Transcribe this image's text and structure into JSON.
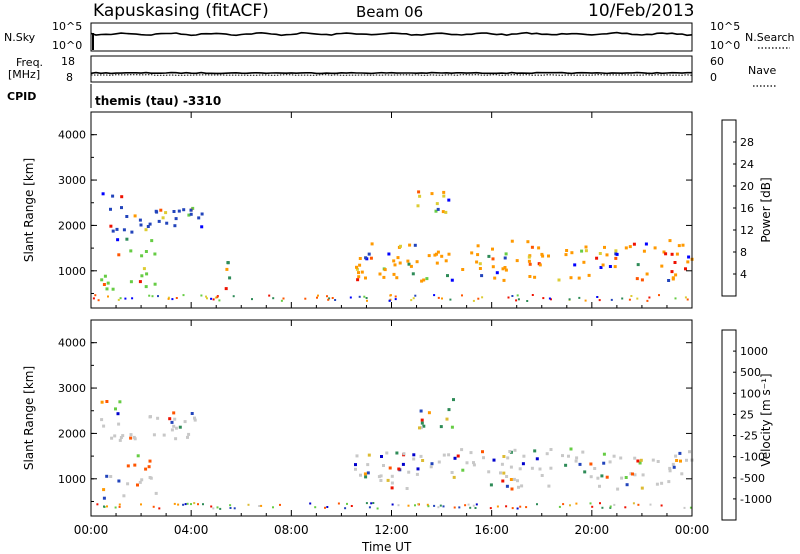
{
  "header": {
    "station": "Kapuskasing (fitACF)",
    "beam": "Beam 06",
    "date": "10/Feb/2013"
  },
  "strips": {
    "nsky_label": "N.Sky",
    "nsky_ticks": [
      "10^5",
      "10^0"
    ],
    "nsearch_label": "N.Search",
    "nsearch_ticks": [
      "10^5",
      "10^0"
    ],
    "freq_label_1": "Freq.",
    "freq_label_2": "[MHz]",
    "freq_ticks": [
      "18",
      "8"
    ],
    "nave_label": "Nave",
    "nave_ticks": [
      "60",
      "0"
    ],
    "cpid_label": "CPID",
    "cpid_text": "themis (tau) -3310"
  },
  "chart_data": [
    {
      "type": "heatmap",
      "name": "power-panel",
      "ylabel": "Slant Range [km]",
      "xlabel": "Time UT",
      "y_ticks": [
        "4000",
        "3000",
        "2000",
        "1000"
      ],
      "x_ticks": [
        "00:00",
        "04:00",
        "08:00",
        "12:00",
        "16:00",
        "20:00",
        "00:00"
      ],
      "xlim_hours": [
        0,
        24
      ],
      "ylim_km": [
        180,
        4500
      ],
      "colorbar": {
        "label": "Power [dB]",
        "ticks": [
          "28",
          "24",
          "20",
          "16",
          "12",
          "8",
          "4"
        ],
        "colors": [
          "#0000ff",
          "#2244bb",
          "#2e8b57",
          "#66cc44",
          "#ddcc33",
          "#ff9900",
          "#ff5500",
          "#ee1100"
        ]
      },
      "echo_regions": [
        {
          "t0": 0.3,
          "t1": 1.3,
          "r0": 2350,
          "r1": 2750,
          "dominant": "#2244bb"
        },
        {
          "t0": 0.3,
          "t1": 2.6,
          "r0": 600,
          "r1": 1100,
          "dominant": "#66cc44"
        },
        {
          "t0": 1.0,
          "t1": 2.5,
          "r0": 1300,
          "r1": 1800,
          "dominant": "#66cc44"
        },
        {
          "t0": 0.3,
          "t1": 4.5,
          "r0": 1800,
          "r1": 2500,
          "dominant": "#2244bb"
        },
        {
          "t0": 5.0,
          "t1": 5.5,
          "r0": 600,
          "r1": 1500,
          "dominant": "#2e8b57"
        },
        {
          "t0": 10.5,
          "t1": 24.0,
          "r0": 800,
          "r1": 1700,
          "dominant": "#ff9900"
        },
        {
          "t0": 13.0,
          "t1": 14.5,
          "r0": 2100,
          "r1": 2800,
          "dominant": "#ddcc33"
        }
      ]
    },
    {
      "type": "heatmap",
      "name": "velocity-panel",
      "ylabel": "Slant Range [km]",
      "xlabel": "Time UT",
      "y_ticks": [
        "4000",
        "3000",
        "2000",
        "1000"
      ],
      "x_ticks": [
        "00:00",
        "04:00",
        "08:00",
        "12:00",
        "16:00",
        "20:00",
        "00:00"
      ],
      "xlim_hours": [
        0,
        24
      ],
      "ylim_km": [
        180,
        4500
      ],
      "colorbar": {
        "label": "Velocity [m s⁻¹]",
        "ticks": [
          "1000",
          "500",
          "100",
          "25",
          "-25",
          "-100",
          "-500",
          "-1000"
        ],
        "colors": [
          "#ee1100",
          "#ff5500",
          "#ff9900",
          "#ddbb33",
          "#c8c8c8",
          "#66cc44",
          "#2e8b57",
          "#2244bb",
          "#0000cc"
        ]
      },
      "echo_regions": [
        {
          "t0": 0.3,
          "t1": 1.3,
          "r0": 2350,
          "r1": 2750,
          "dominant": "#66cc44"
        },
        {
          "t0": 0.3,
          "t1": 2.6,
          "r0": 600,
          "r1": 1100,
          "dominant": "#c8c8c8"
        },
        {
          "t0": 1.4,
          "t1": 2.5,
          "r0": 1200,
          "r1": 1700,
          "dominant": "#ff5500"
        },
        {
          "t0": 0.3,
          "t1": 4.5,
          "r0": 1800,
          "r1": 2500,
          "dominant": "#c8c8c8"
        },
        {
          "t0": 10.5,
          "t1": 24.0,
          "r0": 800,
          "r1": 1700,
          "dominant": "#c8c8c8"
        },
        {
          "t0": 13.0,
          "t1": 14.5,
          "r0": 2100,
          "r1": 2800,
          "dominant": "#2e8b57"
        }
      ]
    }
  ]
}
